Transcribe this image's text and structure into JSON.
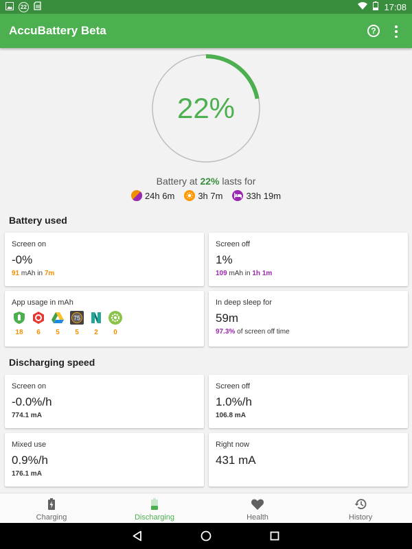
{
  "status_bar": {
    "badge": "22",
    "time": "17:08"
  },
  "app_bar": {
    "title": "AccuBattery Beta",
    "help_glyph": "?",
    "icons": [
      "help-icon",
      "overflow-menu-icon"
    ]
  },
  "battery": {
    "percent": 22,
    "percent_label": "22%",
    "lasts_prefix": "Battery at",
    "lasts_percent": "22%",
    "lasts_suffix": "lasts for",
    "estimates": [
      {
        "icon": "mixed-use-icon",
        "value": "24h 6m",
        "color": "#ef8f00"
      },
      {
        "icon": "screen-on-sun-icon",
        "value": "3h 7m",
        "color": "#ff9800"
      },
      {
        "icon": "sleep-bed-icon",
        "value": "33h 19m",
        "color": "#9c27b0"
      }
    ]
  },
  "battery_used": {
    "title": "Battery used",
    "screen_on": {
      "label": "Screen on",
      "value": "-0%",
      "mah": "91",
      "mah_unit": "mAh in",
      "time": "7m"
    },
    "screen_off": {
      "label": "Screen off",
      "value": "1%",
      "mah": "109",
      "mah_unit": "mAh in",
      "time": "1h 1m"
    },
    "app_usage": {
      "label": "App usage in mAh",
      "apps": [
        {
          "icon": "accubattery-app-icon",
          "value": "18",
          "color": "#4caf50"
        },
        {
          "icon": "settings-red-app-icon",
          "value": "6",
          "color": "#e53935"
        },
        {
          "icon": "google-drive-app-icon",
          "value": "5",
          "color": "#1e88e5"
        },
        {
          "icon": "watchface-75-app-icon",
          "value": "5",
          "color": "#546e7a",
          "text": "75"
        },
        {
          "icon": "nova-launcher-app-icon",
          "value": "2",
          "color": "#26a69a"
        },
        {
          "icon": "android-settings-app-icon",
          "value": "0",
          "color": "#8bc34a"
        }
      ]
    },
    "deep_sleep": {
      "label": "In deep sleep for",
      "value": "59m",
      "percent": "97.3%",
      "suffix": "of screen off time"
    }
  },
  "discharging_speed": {
    "title": "Discharging speed",
    "screen_on": {
      "label": "Screen on",
      "value": "-0.0%/h",
      "current": "774.1 mA"
    },
    "screen_off": {
      "label": "Screen off",
      "value": "1.0%/h",
      "current": "106.8 mA"
    },
    "mixed_use": {
      "label": "Mixed use",
      "value": "0.9%/h",
      "current": "176.1 mA"
    },
    "right_now": {
      "label": "Right now",
      "value": "431 mA"
    }
  },
  "bottom_nav": {
    "items": [
      {
        "label": "Charging",
        "icon": "charging-battery-icon",
        "active": false
      },
      {
        "label": "Discharging",
        "icon": "discharging-battery-icon",
        "active": true
      },
      {
        "label": "Health",
        "icon": "heart-icon",
        "active": false
      },
      {
        "label": "History",
        "icon": "history-clock-icon",
        "active": false
      }
    ]
  },
  "system_nav": [
    "back-icon",
    "home-icon",
    "recents-icon"
  ],
  "colors": {
    "primary": "#4caf50",
    "primary_dark": "#388e3c",
    "orange": "#ef8f00",
    "purple": "#9c27b0"
  }
}
